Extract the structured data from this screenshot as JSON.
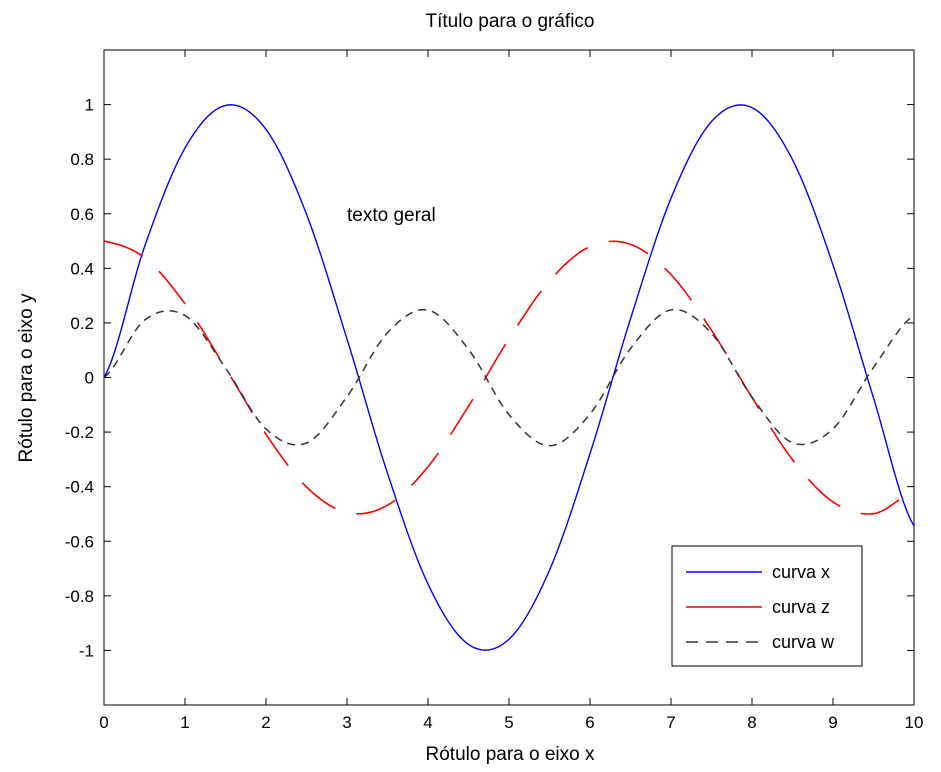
{
  "chart_data": {
    "type": "line",
    "title": "Título para o gráfico",
    "xlabel": "Rótulo para o eixo x",
    "ylabel": "Rótulo para o eixo y",
    "xlim": [
      0,
      10
    ],
    "ylim": [
      -1.2,
      1.2
    ],
    "xticks": [
      0,
      1,
      2,
      3,
      4,
      5,
      6,
      7,
      8,
      9,
      10
    ],
    "yticks": [
      -1,
      -0.8,
      -0.6,
      -0.4,
      -0.2,
      0,
      0.2,
      0.4,
      0.6,
      0.8,
      1
    ],
    "xtick_labels": [
      "0",
      "1",
      "2",
      "3",
      "4",
      "5",
      "6",
      "7",
      "8",
      "9",
      "10"
    ],
    "ytick_labels": [
      "-1",
      "-0.8",
      "-0.6",
      "-0.4",
      "-0.2",
      "0",
      "0.2",
      "0.4",
      "0.6",
      "0.8",
      "1"
    ],
    "grid": false,
    "legend_position": "bottom-right",
    "annotations": [
      {
        "text": "texto geral",
        "x": 3.0,
        "y": 0.6
      }
    ],
    "x": [
      0,
      0.5,
      1,
      1.5,
      2,
      2.5,
      3,
      3.5,
      4,
      4.5,
      5,
      5.5,
      6,
      6.5,
      7,
      7.5,
      8,
      8.5,
      9,
      9.5,
      10
    ],
    "series": [
      {
        "name": "curva x",
        "color": "#0000ff",
        "style": "solid",
        "values": [
          0,
          0.479,
          0.841,
          0.997,
          0.909,
          0.598,
          0.141,
          -0.351,
          -0.757,
          -0.978,
          -0.959,
          -0.706,
          -0.279,
          0.215,
          0.657,
          0.938,
          0.989,
          0.798,
          0.412,
          -0.075,
          -0.544
        ]
      },
      {
        "name": "curva z",
        "color": "#ff0000",
        "style": "dash-long",
        "values": [
          0.5,
          0.439,
          0.27,
          0.035,
          -0.208,
          -0.401,
          -0.495,
          -0.468,
          -0.327,
          -0.105,
          0.142,
          0.354,
          0.48,
          0.488,
          0.377,
          0.173,
          -0.073,
          -0.301,
          -0.456,
          -0.499,
          -0.42
        ]
      },
      {
        "name": "curva w",
        "color": "#333333",
        "style": "dash",
        "values": [
          0,
          0.21,
          0.227,
          0.035,
          -0.189,
          -0.24,
          -0.07,
          0.164,
          0.247,
          0.103,
          -0.136,
          -0.25,
          -0.134,
          0.106,
          0.248,
          0.162,
          -0.072,
          -0.239,
          -0.188,
          0.037,
          0.228
        ]
      }
    ]
  }
}
